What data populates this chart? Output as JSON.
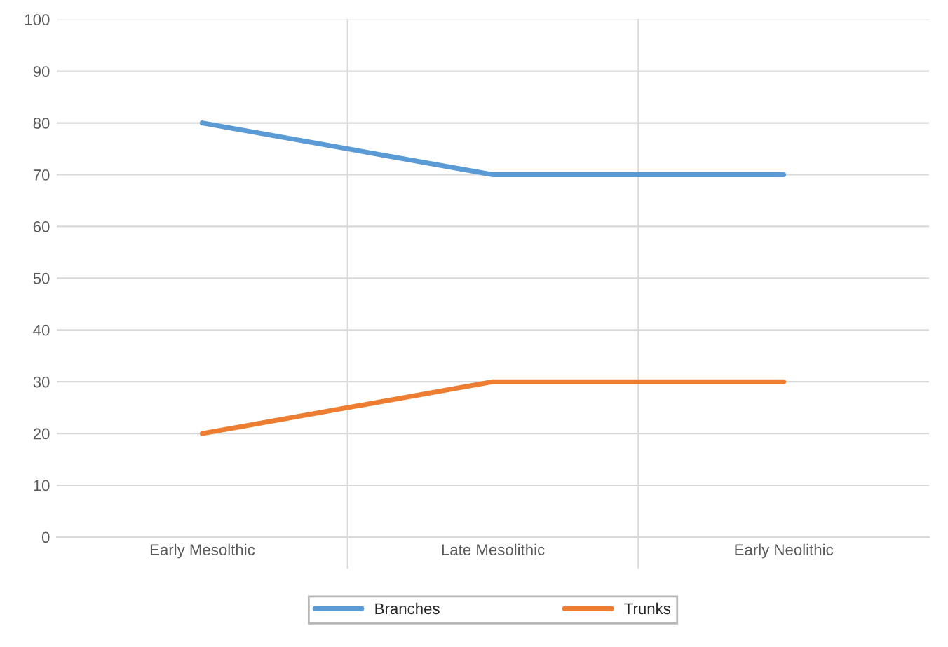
{
  "chart_data": {
    "type": "line",
    "categories": [
      "Early Mesolthic",
      "Late Mesolithic",
      "Early Neolithic"
    ],
    "series": [
      {
        "name": "Branches",
        "color": "#5b9bd5",
        "values": [
          80,
          70,
          70
        ]
      },
      {
        "name": "Trunks",
        "color": "#ed7d31",
        "values": [
          20,
          30,
          30
        ]
      }
    ],
    "ylim": [
      0,
      100
    ],
    "yticks": [
      0,
      10,
      20,
      30,
      40,
      50,
      60,
      70,
      80,
      90,
      100
    ],
    "grid": true,
    "legend": "bottom",
    "marker": "none",
    "line_style": "solid"
  }
}
